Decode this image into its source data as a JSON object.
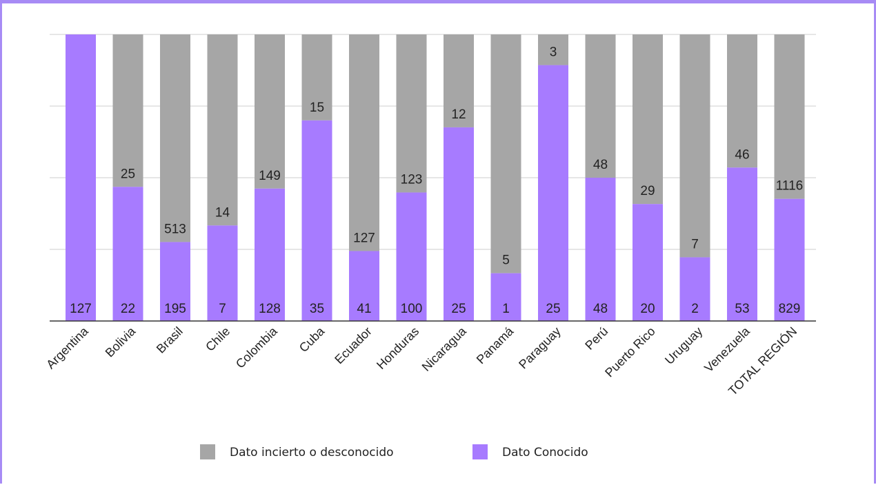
{
  "chart_data": {
    "type": "bar",
    "stacked": true,
    "percent_stacked": true,
    "title": "",
    "xlabel": "",
    "ylabel": "",
    "grid": true,
    "legend_position": "bottom",
    "categories": [
      "Argentina",
      "Bolivia",
      "Brasil",
      "Chile",
      "Colombia",
      "Cuba",
      "Ecuador",
      "Honduras",
      "Nicaragua",
      "Panamá",
      "Paraguay",
      "Perú",
      "Puerto Rico",
      "Uruguay",
      "Venezuela",
      "TOTAL REGIÓN"
    ],
    "series": [
      {
        "name": "Dato Conocido",
        "color": "#a77bff",
        "values": [
          127,
          22,
          195,
          7,
          128,
          35,
          41,
          100,
          25,
          1,
          25,
          48,
          20,
          2,
          53,
          829
        ],
        "labels": [
          "127",
          "22",
          "195",
          "7",
          "128",
          "35",
          "41",
          "100",
          "25",
          "1",
          "25",
          "48",
          "20",
          "2",
          "53",
          "829"
        ]
      },
      {
        "name": "Dato incierto o desconocido",
        "color": "#a6a6a6",
        "values": [
          0,
          25,
          513,
          14,
          149,
          15,
          127,
          123,
          12,
          5,
          3,
          48,
          29,
          7,
          46,
          1116
        ],
        "labels": [
          "",
          "25",
          "513",
          "14",
          "149",
          "15",
          "127",
          "123",
          "12",
          "5",
          "3",
          "48",
          "29",
          "7",
          "46",
          "1116"
        ]
      }
    ]
  }
}
